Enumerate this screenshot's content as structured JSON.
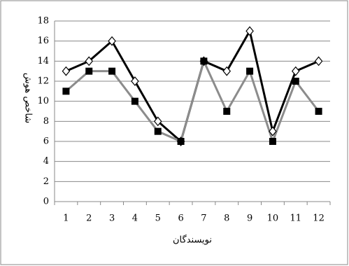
{
  "chart_data": {
    "type": "line",
    "categories": [
      "1",
      "2",
      "3",
      "4",
      "5",
      "6",
      "7",
      "8",
      "9",
      "10",
      "11",
      "12"
    ],
    "series": [
      {
        "color": "#000000",
        "marker": "diamond",
        "values": [
          13,
          14,
          16,
          12,
          8,
          6,
          14,
          13,
          17,
          7,
          13,
          14
        ]
      },
      {
        "color": "#8c8c8c",
        "marker": "square",
        "values": [
          11,
          13,
          13,
          10,
          7,
          6,
          14,
          9,
          13,
          6,
          12,
          9
        ]
      }
    ],
    "ylim": [
      0,
      18
    ],
    "yticks": [
      0,
      2,
      4,
      6,
      8,
      10,
      12,
      14,
      16,
      18
    ],
    "grid": true,
    "y_label": "شاخص هوش",
    "x_label": "نویسندگان"
  }
}
